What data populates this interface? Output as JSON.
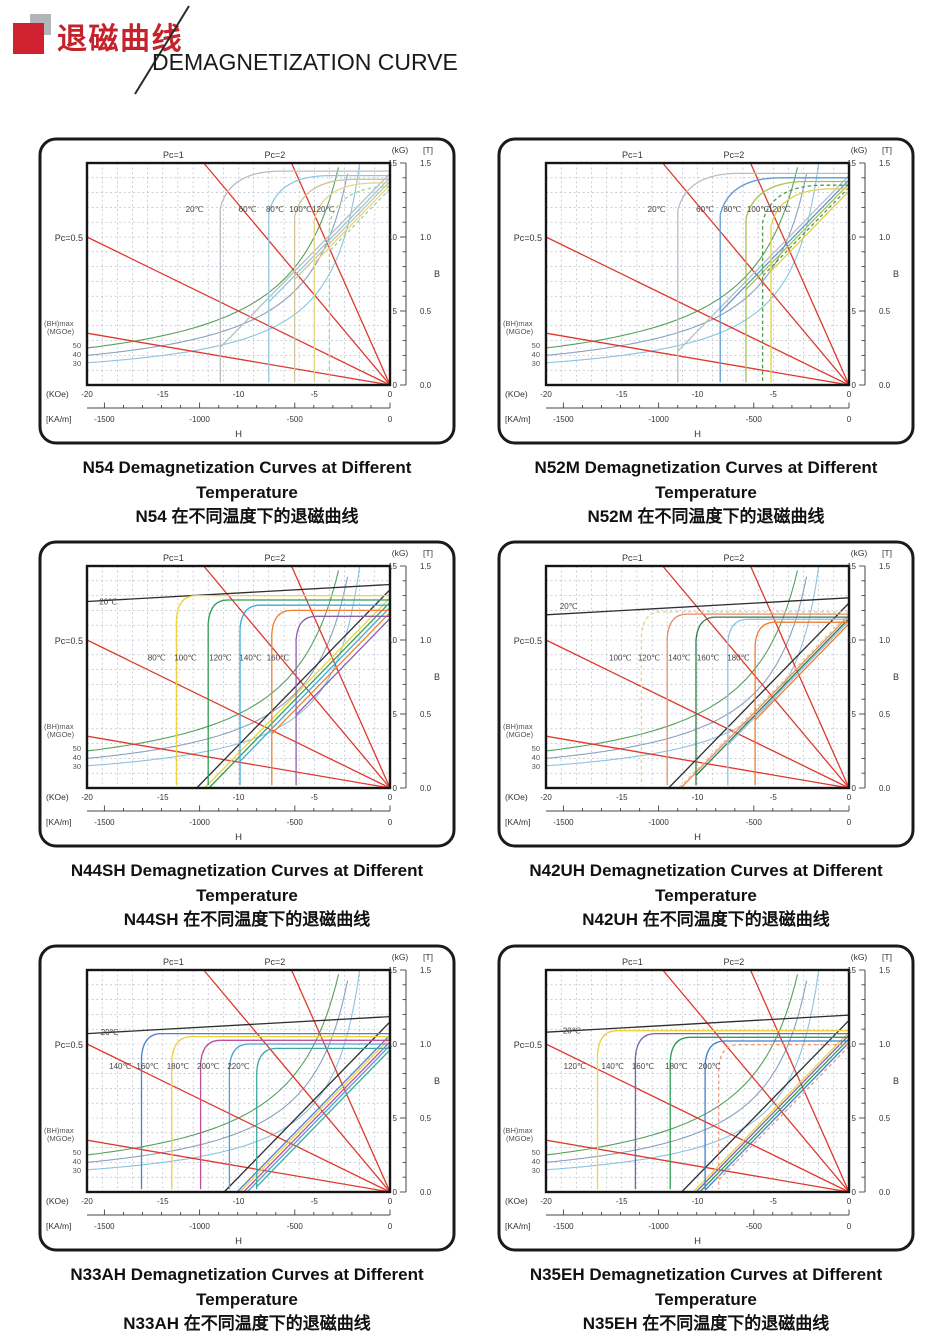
{
  "header": {
    "title_cn": "退磁曲线",
    "title_en": "DEMAGNETIZATION CURVE"
  },
  "colors": {
    "accent_red": "#c5232c",
    "load_line_red": "#df382d",
    "grid": "#a9b4c6",
    "border": "#1a1a1a"
  },
  "axes": {
    "pc1": "Pc=1",
    "pc2": "Pc=2",
    "pc05": "Pc=0.5",
    "y_unit_left": "(kG)",
    "y_unit_right": "[T]",
    "y_axis_label": "B",
    "x_unit_1": "(KOe)",
    "x_unit_2": "[KA/m]",
    "x_axis_label": "H",
    "bhmax_label_1": "(BH)max",
    "bhmax_label_2": "(MGOe)",
    "bhmax_values": [
      50,
      40,
      30
    ],
    "y_ticks_kg": [
      15,
      10,
      5,
      0
    ],
    "y_ticks_t": [
      "1.5",
      "1.0",
      "0.5",
      "0.0"
    ],
    "x_ticks_koe": [
      -20,
      -15,
      -10,
      -5,
      0
    ],
    "x_ticks_kam": [
      -1500,
      -1000,
      -500,
      0
    ],
    "x_range_koe": [
      -20,
      0
    ],
    "y_range_kg": [
      0,
      15
    ]
  },
  "pc_lines": [
    {
      "label": "Pc=2",
      "end": [
        -6.5,
        15
      ],
      "label_x": -7.6
    },
    {
      "label": "Pc=1",
      "end": [
        -12.3,
        15
      ],
      "label_x": -14.3
    },
    {
      "label": "Pc=0.5",
      "end": [
        -20,
        10
      ],
      "label_x": null
    },
    {
      "label": null,
      "end": [
        -20,
        3.5
      ],
      "label_x": null
    }
  ],
  "bh_contours": [
    {
      "MGOe": 50,
      "color": "#57a05c"
    },
    {
      "MGOe": 40,
      "color": "#8aa0bc"
    },
    {
      "MGOe": 30,
      "color": "#8cc3e0"
    }
  ],
  "chart_data": [
    {
      "type": "line",
      "grade": "N54",
      "caption_en": "N54 Demagnetization Curves at Different Temperature",
      "caption_cn": "N54 在不同温度下的退磁曲线",
      "round_knee": true,
      "label_B": 11.7,
      "series": [
        {
          "temp": "20℃",
          "color": "#b9bdc0",
          "Bi": 14.45,
          "Br": 14.3,
          "Hk": -11.2,
          "lx": -12.9
        },
        {
          "temp": "60℃",
          "color": "#8fc8e2",
          "Bi": 14.15,
          "Br": 14.0,
          "Hk": -8.0,
          "lx": -9.4
        },
        {
          "temp": "80℃",
          "color": "#cfc49e",
          "Bi": 13.9,
          "Br": 13.75,
          "Hk": -6.3,
          "lx": -7.6
        },
        {
          "temp": "100℃",
          "color": "#e0d689",
          "Bi": 13.65,
          "Br": 13.5,
          "Hk": -5.0,
          "lx": -5.9
        },
        {
          "temp": "120℃",
          "color": "#a5d193",
          "Bi": 13.4,
          "Br": 13.25,
          "Hk": -4.0,
          "lx": -4.4,
          "dash": true
        }
      ]
    },
    {
      "type": "line",
      "grade": "N52M",
      "caption_en": "N52M Demagnetization Curves at Different Temperature",
      "caption_cn": "N52M 在不同温度下的退磁曲线",
      "round_knee": true,
      "label_B": 11.7,
      "series": [
        {
          "temp": "20℃",
          "color": "#b9bdc0",
          "Bi": 14.3,
          "Br": 14.15,
          "Hk": -11.3,
          "lx": -12.7
        },
        {
          "temp": "60℃",
          "color": "#5b9bd5",
          "Bi": 14.0,
          "Br": 13.85,
          "Hk": -8.5,
          "lx": -9.5
        },
        {
          "temp": "80℃",
          "color": "#a8c050",
          "Bi": 13.75,
          "Br": 13.6,
          "Hk": -6.8,
          "lx": -7.7
        },
        {
          "temp": "100℃",
          "color": "#4a9a4a",
          "Bi": 13.5,
          "Br": 13.35,
          "Hk": -5.7,
          "lx": -6.0,
          "dash": true
        },
        {
          "temp": "120℃",
          "color": "#e3cf4a",
          "Bi": 13.25,
          "Br": 13.1,
          "Hk": -5.15,
          "lx": -4.6
        }
      ]
    },
    {
      "type": "line",
      "grade": "N44SH",
      "caption_en": "N44SH Demagnetization Curves at Different Temperature",
      "caption_cn": "N44SH 在不同温度下的退磁曲线",
      "round_knee": false,
      "label_B": 8.6,
      "series": [
        {
          "temp": "20℃",
          "color": "#2e2e2e",
          "Bi": 13.5,
          "Br": 13.4,
          "Hk": null,
          "lx": -18.6,
          "ly": 12.4
        },
        {
          "temp": "80℃",
          "color": "#eed23f",
          "Bi": 13.0,
          "Br": 12.85,
          "Hk": -14.1,
          "lx": -15.4
        },
        {
          "temp": "100℃",
          "color": "#2f9e53",
          "Bi": 12.7,
          "Br": 12.55,
          "Hk": -12.0,
          "lx": -13.5
        },
        {
          "temp": "120℃",
          "color": "#3da8d8",
          "Bi": 12.35,
          "Br": 12.2,
          "Hk": -9.9,
          "lx": -11.2
        },
        {
          "temp": "140℃",
          "color": "#ee8133",
          "Bi": 12.0,
          "Br": 11.85,
          "Hk": -7.8,
          "lx": -9.2
        },
        {
          "temp": "160℃",
          "color": "#8d5fa8",
          "Bi": 11.6,
          "Br": 11.45,
          "Hk": -6.2,
          "lx": -7.4
        }
      ]
    },
    {
      "type": "line",
      "grade": "N42UH",
      "caption_en": "N42UH Demagnetization Curves at Different Temperature",
      "caption_cn": "N42UH 在不同温度下的退磁曲线",
      "round_knee": false,
      "label_B": 8.6,
      "series": [
        {
          "temp": "20℃",
          "color": "#2e2e2e",
          "Bi": 12.6,
          "Br": 12.5,
          "Hk": null,
          "lx": -18.5,
          "ly": 12.1
        },
        {
          "temp": "100℃",
          "color": "#e4d188",
          "Bi": 11.9,
          "Br": 11.8,
          "Hk": -13.7,
          "lx": -15.1,
          "dash": true
        },
        {
          "temp": "120℃",
          "color": "#e88a70",
          "Bi": 11.75,
          "Br": 11.65,
          "Hk": -12.0,
          "lx": -13.2
        },
        {
          "temp": "140℃",
          "color": "#2f7d4f",
          "Bi": 11.55,
          "Br": 11.45,
          "Hk": -10.1,
          "lx": -11.2
        },
        {
          "temp": "160℃",
          "color": "#92c2e2",
          "Bi": 11.4,
          "Br": 11.3,
          "Hk": -8.0,
          "lx": -9.3
        },
        {
          "temp": "180℃",
          "color": "#ee7c33",
          "Bi": 11.2,
          "Br": 11.1,
          "Hk": -6.2,
          "lx": -7.3
        }
      ]
    },
    {
      "type": "line",
      "grade": "N33AH",
      "caption_en": "N33AH Demagnetization Curves at Different Temperature",
      "caption_cn": "N33AH 在不同温度下的退磁曲线",
      "round_knee": false,
      "label_B": 8.3,
      "series": [
        {
          "temp": "20℃",
          "color": "#2e2e2e",
          "Bi": 11.6,
          "Br": 11.5,
          "Hk": null,
          "lx": -18.5,
          "ly": 10.6
        },
        {
          "temp": "140℃",
          "color": "#4f7fd0",
          "Bi": 10.7,
          "Br": 10.6,
          "Hk": -16.4,
          "lx": -17.8
        },
        {
          "temp": "160℃",
          "color": "#eed23f",
          "Bi": 10.5,
          "Br": 10.4,
          "Hk": -14.4,
          "lx": -16.0
        },
        {
          "temp": "180℃",
          "color": "#c0509a",
          "Bi": 10.25,
          "Br": 10.15,
          "Hk": -12.5,
          "lx": -14.0
        },
        {
          "temp": "200℃",
          "color": "#4f9fd0",
          "Bi": 10.0,
          "Br": 9.9,
          "Hk": -10.6,
          "lx": -12.0
        },
        {
          "temp": "220℃",
          "color": "#3fa8a0",
          "Bi": 9.7,
          "Br": 9.6,
          "Hk": -8.8,
          "lx": -10.0
        }
      ]
    },
    {
      "type": "line",
      "grade": "N35EH",
      "caption_en": "N35EH Demagnetization Curves at Different Temperature",
      "caption_cn": "N35EH 在不同温度下的退磁曲线",
      "round_knee": false,
      "label_B": 8.3,
      "series": [
        {
          "temp": "20℃",
          "color": "#2e2e2e",
          "Bi": 11.7,
          "Br": 11.6,
          "Hk": null,
          "lx": -18.3,
          "ly": 10.7
        },
        {
          "temp": "120℃",
          "color": "#eed23f",
          "Bi": 10.9,
          "Br": 10.8,
          "Hk": -16.6,
          "lx": -18.1
        },
        {
          "temp": "140℃",
          "color": "#7f5fb0",
          "Bi": 10.7,
          "Br": 10.6,
          "Hk": -14.1,
          "lx": -15.6
        },
        {
          "temp": "160℃",
          "color": "#2f9e53",
          "Bi": 10.45,
          "Br": 10.35,
          "Hk": -11.8,
          "lx": -13.6
        },
        {
          "temp": "180℃",
          "color": "#3f7fd0",
          "Bi": 10.2,
          "Br": 10.1,
          "Hk": -9.5,
          "lx": -11.4
        },
        {
          "temp": "200℃",
          "color": "#ee9a80",
          "Bi": 9.95,
          "Br": 9.85,
          "Hk": -8.6,
          "lx": -9.2,
          "dash": true
        }
      ]
    }
  ]
}
